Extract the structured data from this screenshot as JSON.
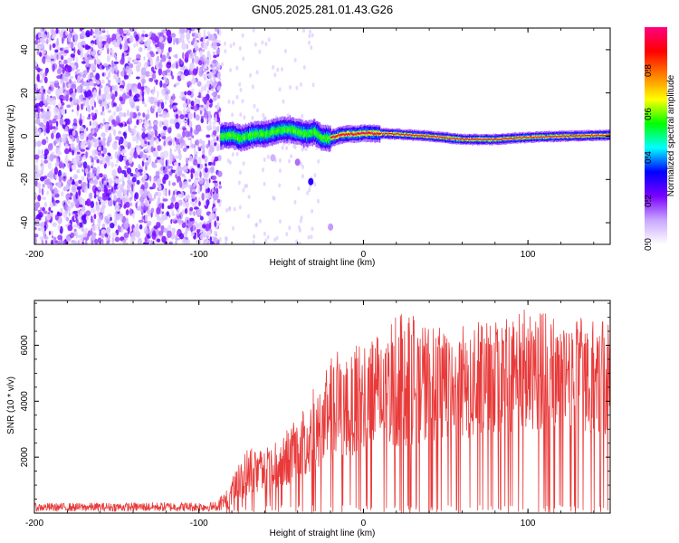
{
  "title": "GN05.2025.281.01.43.G26",
  "chart_data": [
    {
      "type": "heatmap",
      "name": "spectrogram",
      "xlabel": "Height of straight line (km)",
      "ylabel": "Frequency (Hz)",
      "xlim": [
        -200,
        150
      ],
      "ylim": [
        -50,
        50
      ],
      "x_ticks": [
        -200,
        -100,
        0,
        100
      ],
      "x_tick_labels": [
        "-200",
        "-100",
        "0",
        "100"
      ],
      "y_ticks": [
        -40,
        -20,
        0,
        20,
        40
      ],
      "y_tick_labels": [
        "-40",
        "-20",
        "0",
        "20",
        "40"
      ],
      "noise_region_x": [
        -200,
        -87
      ],
      "signal_region_x": [
        -87,
        150
      ],
      "ridge": {
        "x": [
          -87,
          -80,
          -75,
          -70,
          -65,
          -60,
          -55,
          -50,
          -45,
          -40,
          -35,
          -30,
          -25,
          -20,
          -15,
          -10,
          -5,
          0,
          20,
          40,
          60,
          80,
          100,
          120,
          150
        ],
        "y": [
          0,
          0.5,
          -1,
          0,
          1,
          1,
          2,
          3,
          3,
          2,
          1,
          2,
          -1,
          -1,
          0.5,
          1,
          1,
          1.5,
          1,
          0,
          -1.5,
          -1.5,
          -0.5,
          0,
          0.5
        ]
      },
      "colorbar": {
        "label": "Normalized spectral amplitude",
        "range": [
          0,
          1
        ],
        "ticks": [
          0,
          0.2,
          0.4,
          0.6,
          0.8
        ],
        "tick_labels": [
          "0.0",
          "0.2",
          "0.4",
          "0.6",
          "0.8"
        ],
        "colors": [
          "#ffffff",
          "#c8a8ff",
          "#7a00ff",
          "#0000ff",
          "#00ffff",
          "#00ff00",
          "#ffff00",
          "#ff8000",
          "#ff0000",
          "#ff0080"
        ]
      }
    },
    {
      "type": "line",
      "name": "snr",
      "xlabel": "Height of straight line (km)",
      "ylabel": "SNR (10 * v/v)",
      "xlim": [
        -200,
        150
      ],
      "ylim": [
        0,
        7600
      ],
      "x_ticks": [
        -200,
        -100,
        0,
        100
      ],
      "x_tick_labels": [
        "-200",
        "-100",
        "0",
        "100"
      ],
      "y_ticks": [
        2000,
        4000,
        6000
      ],
      "y_tick_labels": [
        "2000",
        "4000",
        "6000"
      ],
      "color": "#e83a3a",
      "envelope": {
        "x": [
          -200,
          -90,
          -82,
          -75,
          -70,
          -60,
          -50,
          -40,
          -30,
          -20,
          -10,
          0,
          10,
          25,
          40,
          60,
          80,
          100,
          120,
          150
        ],
        "baseline": [
          80,
          80,
          150,
          400,
          700,
          800,
          900,
          1200,
          1500,
          1800,
          2000,
          2200,
          2200,
          2400,
          2600,
          2600,
          2800,
          3000,
          3000,
          2800
        ],
        "peak": [
          350,
          400,
          900,
          2000,
          2300,
          2500,
          2700,
          3600,
          4500,
          5500,
          6300,
          6500,
          6300,
          7400,
          6600,
          6800,
          7000,
          7400,
          7100,
          6800
        ]
      }
    }
  ]
}
